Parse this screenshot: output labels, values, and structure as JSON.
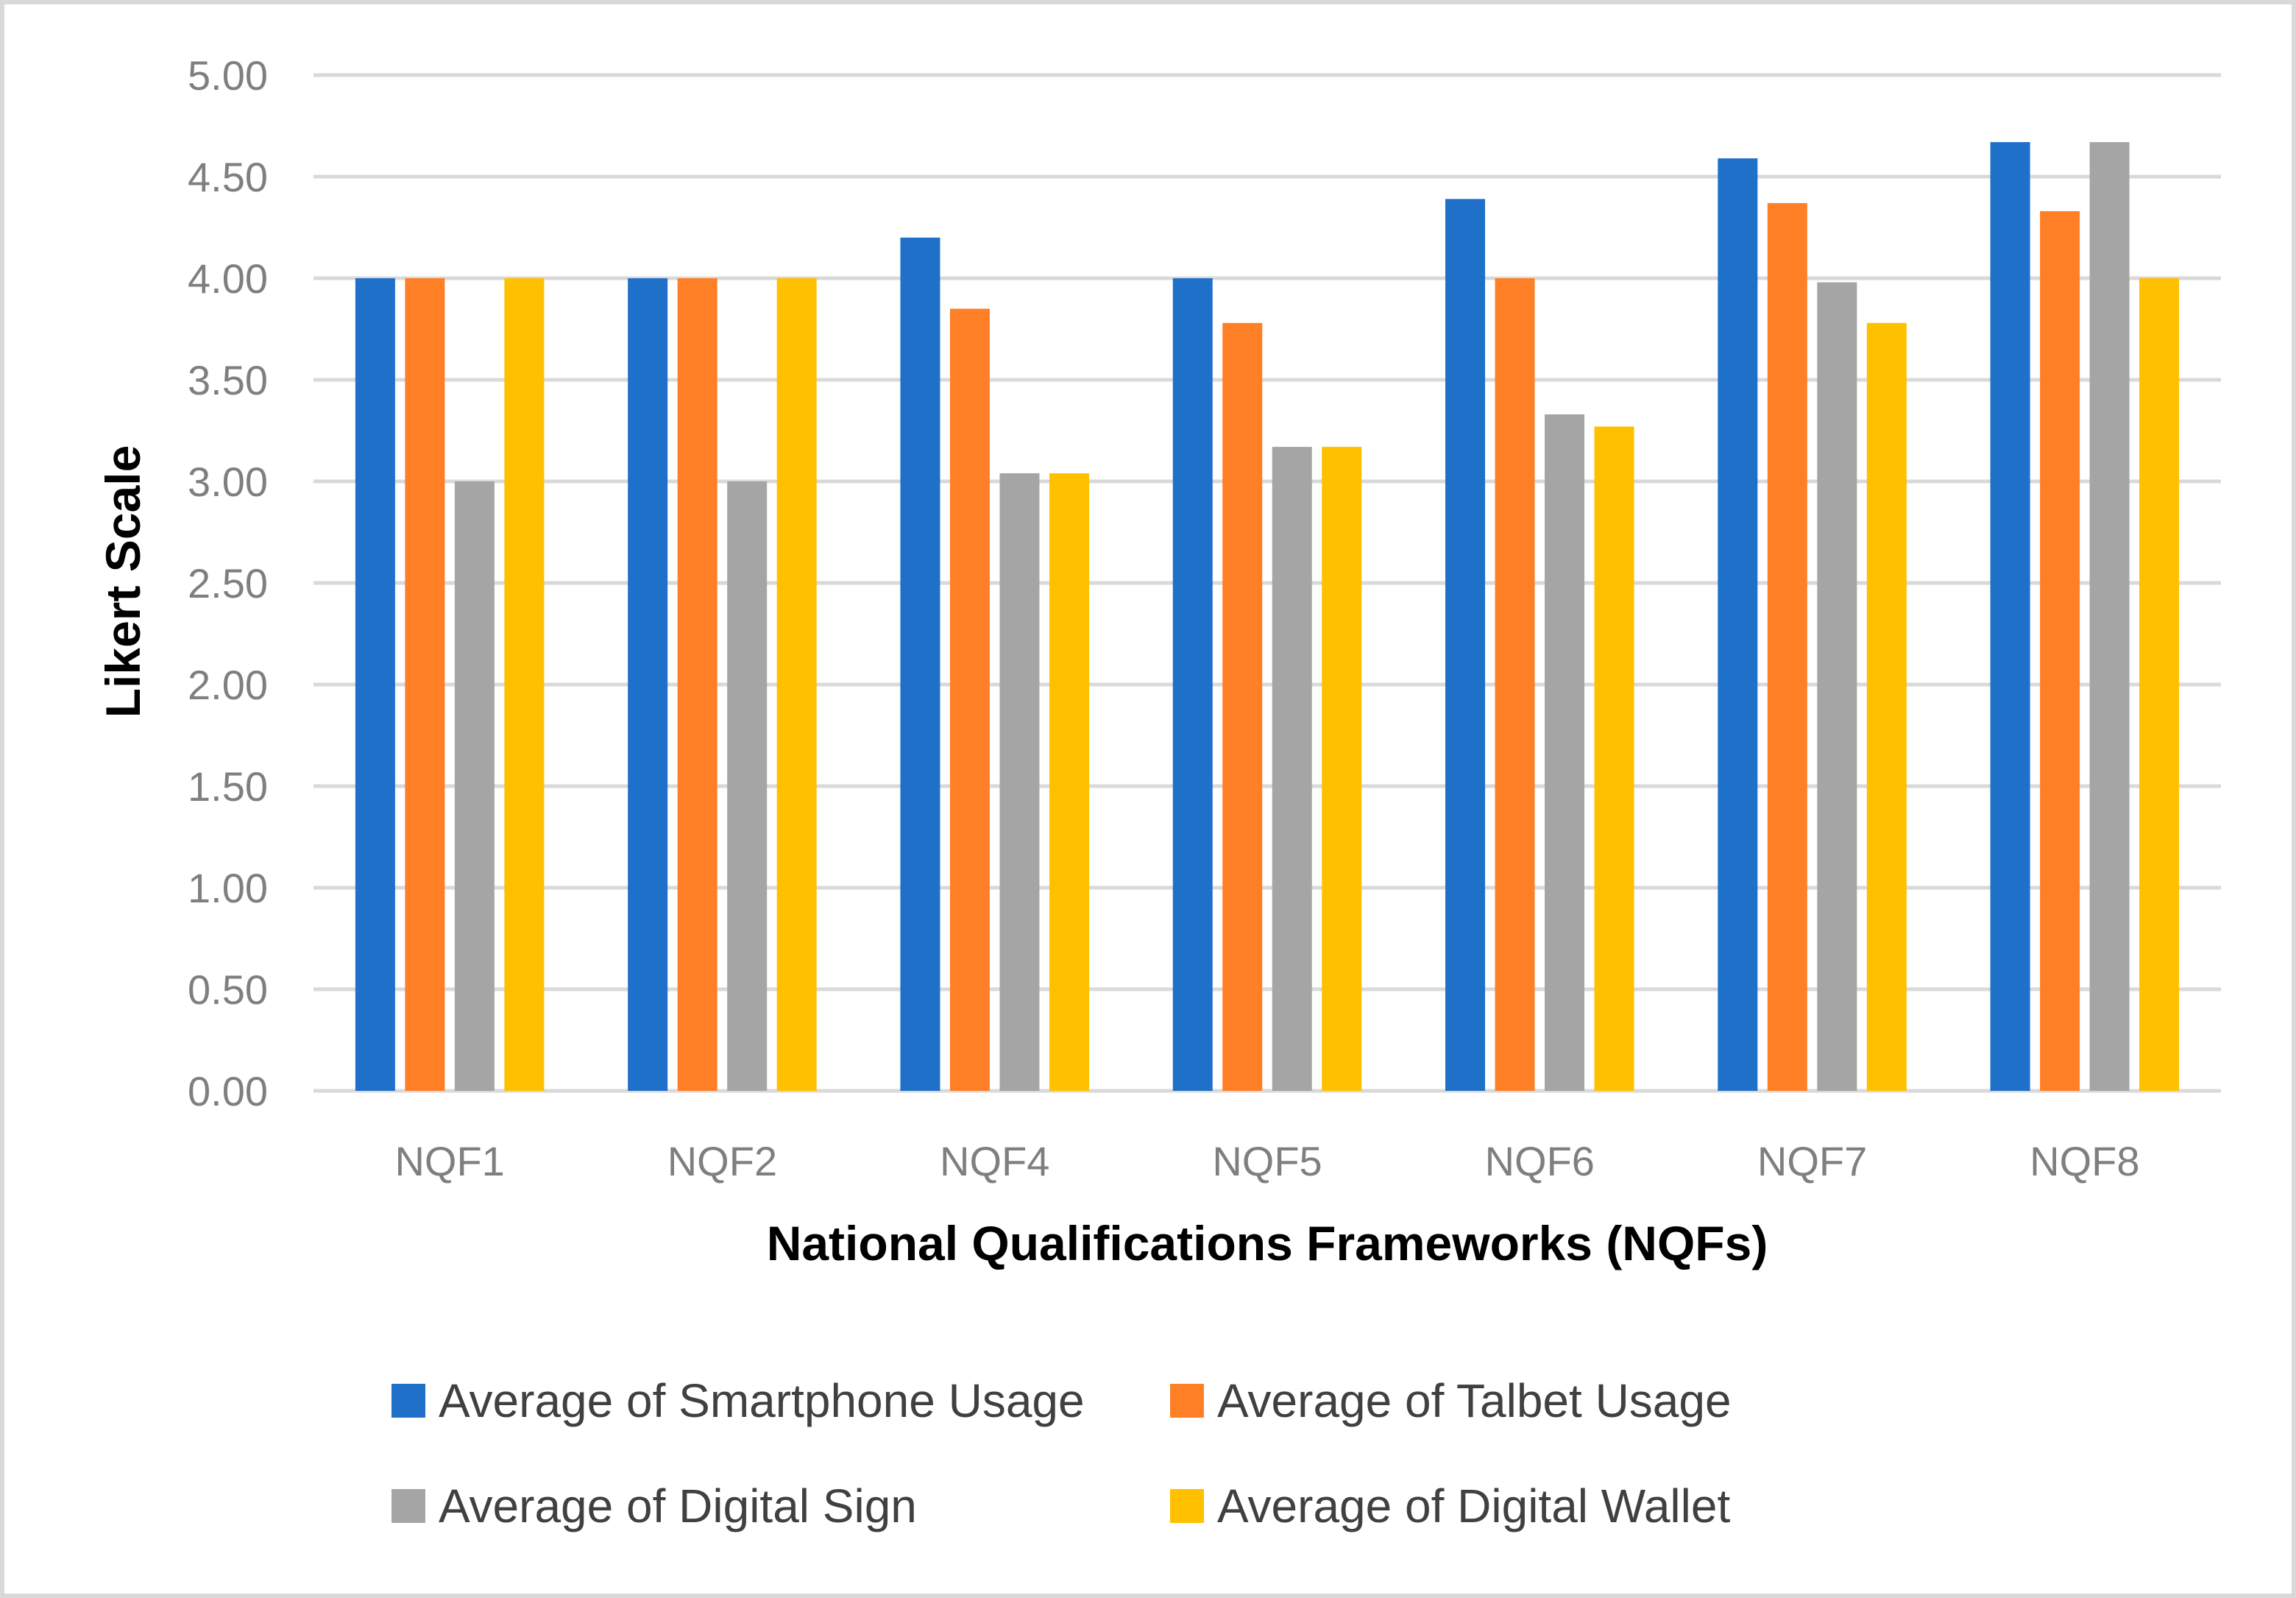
{
  "chart_data": {
    "type": "bar",
    "title": "",
    "xlabel": "National Qualifications Frameworks (NQFs)",
    "ylabel": "Likert Scale",
    "ylim": [
      0,
      5
    ],
    "yticks": [
      "0.00",
      "0.50",
      "1.00",
      "1.50",
      "2.00",
      "2.50",
      "3.00",
      "3.50",
      "4.00",
      "4.50",
      "5.00"
    ],
    "categories": [
      "NQF1",
      "NQF2",
      "NQF4",
      "NQF5",
      "NQF6",
      "NQF7",
      "NQF8"
    ],
    "grid": true,
    "legend_position": "bottom",
    "series": [
      {
        "name": "Average of Smartphone Usage",
        "color": "#1F70C9",
        "values": [
          4.0,
          4.0,
          4.2,
          4.0,
          4.39,
          4.59,
          4.67
        ]
      },
      {
        "name": "Average of Talbet Usage",
        "color": "#FF7F27",
        "values": [
          4.0,
          4.0,
          3.85,
          3.78,
          4.0,
          4.37,
          4.33
        ]
      },
      {
        "name": "Average of Digital Sign",
        "color": "#A5A5A5",
        "values": [
          3.0,
          3.0,
          3.04,
          3.17,
          3.33,
          3.98,
          4.67
        ]
      },
      {
        "name": "Average of Digital Wallet",
        "color": "#FFC000",
        "values": [
          4.0,
          4.0,
          3.04,
          3.17,
          3.27,
          3.78,
          4.0
        ]
      }
    ]
  }
}
